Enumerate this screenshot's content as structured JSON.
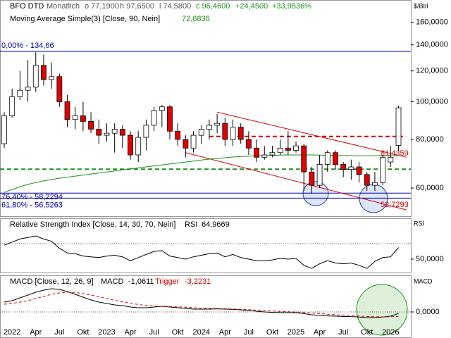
{
  "chart_data": [
    {
      "type": "candlestick",
      "title": "BFO DTD",
      "subtitle": "Monatlich",
      "header_values": [
        "o 77,1900",
        "h 97,6500",
        "l 74,5800",
        "c 96,4600",
        "+24,4500",
        "+33,9536%"
      ],
      "y_label": "$/Bbl",
      "log_scale": true,
      "ylim": [
        50.6,
        182.5
      ],
      "yticks": [
        {
          "value": 60,
          "label": "60,0000"
        },
        {
          "value": 80,
          "label": "80,0000"
        },
        {
          "value": 100,
          "label": "100,0000"
        },
        {
          "value": 120,
          "label": "120,0000"
        },
        {
          "value": 140,
          "label": "140,0000"
        },
        {
          "value": 160,
          "label": "160,0000"
        }
      ],
      "categories": [
        null,
        "2022",
        null,
        null,
        "Apr",
        null,
        null,
        "Jul",
        null,
        null,
        "Okt",
        null,
        null,
        "2023",
        null,
        null,
        "Apr",
        null,
        null,
        "Jul",
        null,
        null,
        "Okt",
        null,
        null,
        "2024",
        null,
        null,
        "Apr",
        null,
        null,
        "Jul",
        null,
        null,
        "Okt",
        null,
        null,
        "2025",
        null,
        null,
        "Apr",
        null,
        null,
        "Jul",
        null,
        null,
        "Okt",
        null,
        null,
        "2026",
        null
      ],
      "open": [
        78,
        92,
        103,
        107,
        109,
        124,
        114,
        116,
        100,
        90,
        92,
        89,
        85,
        82,
        83,
        85,
        82,
        73,
        81,
        87,
        95,
        97,
        84,
        80,
        76,
        82,
        85,
        87,
        88,
        80,
        86,
        80,
        76,
        72,
        73,
        74,
        76,
        75,
        77,
        66,
        61,
        69,
        74,
        69,
        67,
        68,
        65,
        61,
        62,
        70,
        77.19
      ],
      "high": [
        94,
        108,
        120,
        128,
        134,
        132,
        126,
        118,
        104,
        97,
        100,
        94,
        90,
        88,
        88,
        87,
        84,
        84,
        90,
        97,
        98,
        98,
        88,
        82,
        84,
        87,
        90,
        93,
        91,
        90,
        88,
        84,
        80,
        77,
        77,
        80,
        84,
        79,
        78,
        68,
        73,
        75,
        75,
        70,
        71,
        70,
        66,
        66,
        73,
        77,
        97.65
      ],
      "low": [
        76,
        91,
        101,
        100,
        106,
        110,
        108,
        97,
        86,
        85,
        84,
        83,
        78,
        79,
        74,
        76,
        71,
        70,
        75,
        84,
        86,
        80,
        77,
        72,
        74,
        78,
        80,
        83,
        77,
        77,
        78,
        73,
        70,
        71,
        72,
        73,
        73,
        74,
        59,
        58,
        60,
        66,
        67,
        64,
        63,
        62,
        59,
        59,
        61,
        68,
        74.58
      ],
      "close": [
        92,
        103,
        107,
        109,
        124,
        114,
        116,
        100,
        90,
        92,
        89,
        85,
        82,
        83,
        85,
        82,
        73,
        81,
        87,
        95,
        97,
        84,
        80,
        76,
        82,
        85,
        87,
        88,
        80,
        86,
        80,
        76,
        72,
        73,
        74,
        76,
        75,
        77,
        66,
        61,
        69,
        74,
        69,
        67,
        68,
        65,
        61,
        62,
        72,
        72.01,
        96.46
      ],
      "up_color": "#ffffff",
      "down_color": "#e00000",
      "overlay": {
        "name": "Moving Average Simple(3) [Close, 90, Nein]",
        "value_label": "72,6836",
        "color": "#1a8f1a",
        "values": [
          58.5,
          59.5,
          60.5,
          61.3,
          62,
          62.6,
          63.1,
          63.6,
          64,
          64.4,
          64.8,
          65.2,
          65.6,
          66,
          66.4,
          66.8,
          67.2,
          67.6,
          68,
          68.4,
          68.8,
          69.2,
          69.6,
          70,
          70.4,
          70.8,
          71.2,
          71.5,
          71.8,
          72.1,
          72.3,
          72.5,
          72.6,
          72.7,
          72.8,
          72.9,
          73,
          73,
          73,
          73,
          72.9,
          72.8,
          72.8,
          72.7,
          72.7,
          72.6,
          72.6,
          72.7,
          72.7,
          72.7,
          72.6836
        ]
      },
      "levels": [
        {
          "value": 134.66,
          "label": "0,00% - 134,66"
        },
        {
          "value": 58.2294,
          "label": "76,40% - 58,2294"
        },
        {
          "value": 56.5263,
          "label": "61,80% - 56,5263"
        }
      ],
      "level_color": "#0000b0",
      "resistance": {
        "value": 81.4359,
        "label": "81,4359"
      },
      "support": 67.1,
      "channel_upper": [
        94,
        72
      ],
      "channel_lower": [
        74,
        {
          "value": 52.7293,
          "label": "52,7293"
        }
      ],
      "channel_color": "#d00000"
    },
    {
      "type": "line",
      "title": "Relative Strength Index [Close, 14, 30, 70, Nein]",
      "y_label": "RSI",
      "ylim": [
        31.8,
        102.7
      ],
      "yticks": [
        {
          "value": 50,
          "label": "50,0000"
        }
      ],
      "reference": 70,
      "series": [
        {
          "name": "RSI",
          "value_label": "64,9669",
          "color": "#000000",
          "values": [
            68,
            72,
            76,
            78,
            80,
            76,
            73,
            64,
            58,
            57,
            54,
            53,
            52,
            54,
            55,
            53,
            48,
            52,
            56,
            60,
            61,
            54,
            52,
            50,
            53,
            55,
            57,
            58,
            53,
            56,
            52,
            50,
            48,
            48,
            49,
            51,
            50,
            51,
            42,
            38,
            44,
            48,
            45,
            44,
            45,
            42,
            38,
            47,
            52,
            53,
            64.9669
          ]
        }
      ]
    },
    {
      "type": "line",
      "title": "MACD [Close, 12, 26, 9]",
      "y_label": "MACD",
      "ylim": [
        -18.5,
        25.5
      ],
      "yticks": [
        {
          "value": 0,
          "label": "0,0000"
        }
      ],
      "reference": 0,
      "series": [
        {
          "name": "MACD",
          "value_label": "-1,0611",
          "color": "#000000",
          "values": [
            7,
            8,
            10,
            12,
            14,
            15.5,
            16.5,
            16,
            14.5,
            12.5,
            10.5,
            8.5,
            7,
            6,
            5,
            4.5,
            3.5,
            3,
            3,
            3.5,
            4,
            3.5,
            3,
            2.5,
            2,
            2,
            2,
            2.2,
            2,
            1.8,
            1.5,
            1,
            0.5,
            0,
            -0.3,
            -0.5,
            -0.5,
            -0.5,
            -1.2,
            -2,
            -2.5,
            -2.8,
            -3,
            -3.2,
            -3.4,
            -3.6,
            -4,
            -4,
            -3.6,
            -3,
            -1.0611
          ]
        },
        {
          "name": "Trigger",
          "value_label": "-3,2231",
          "color": "#d00000",
          "dashed": true,
          "values": [
            5.5,
            6,
            7,
            8,
            9.5,
            11,
            12.5,
            13.5,
            14,
            13.8,
            13,
            12,
            10.8,
            9.5,
            8.3,
            7.2,
            6.2,
            5.3,
            4.6,
            4.2,
            4,
            3.8,
            3.6,
            3.3,
            3,
            2.7,
            2.5,
            2.4,
            2.3,
            2.1,
            1.9,
            1.6,
            1.3,
            1,
            0.7,
            0.4,
            0.2,
            0,
            -0.3,
            -0.7,
            -1.2,
            -1.6,
            -2,
            -2.3,
            -2.6,
            -2.9,
            -3.2,
            -3.4,
            -3.5,
            -3.4,
            -3.2231
          ]
        }
      ]
    }
  ]
}
